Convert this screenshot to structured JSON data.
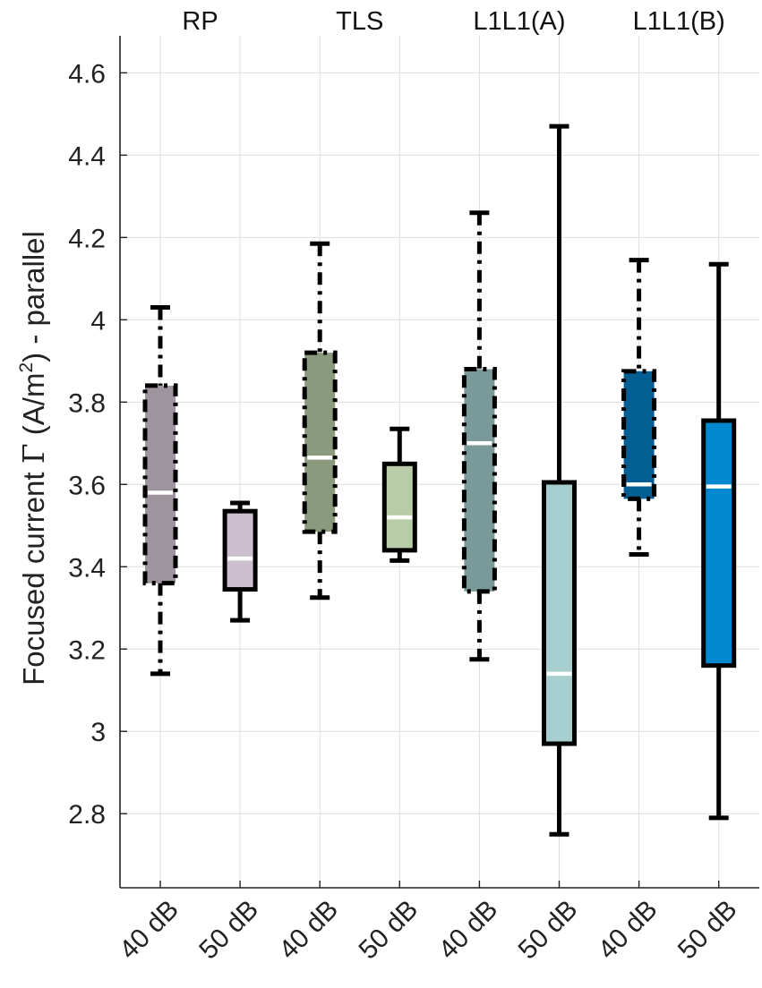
{
  "chart_data": {
    "type": "box",
    "ylabel": {
      "prefix": "Focused current ",
      "symbol": "Γ",
      "unit_open": " (A/m",
      "unit_sup": "2",
      "unit_close": ") - parallel"
    },
    "ylim": [
      2.62,
      4.69
    ],
    "yticks": [
      2.8,
      3.0,
      3.2,
      3.4,
      3.6,
      3.8,
      4.0,
      4.2,
      4.4,
      4.6
    ],
    "ytick_labels": [
      "2.8",
      "3",
      "3.2",
      "3.4",
      "3.6",
      "3.8",
      "4",
      "4.2",
      "4.4",
      "4.6"
    ],
    "groups": [
      {
        "label": "RP",
        "boxes": [
          0,
          1
        ]
      },
      {
        "label": "TLS",
        "boxes": [
          2,
          3
        ]
      },
      {
        "label": "L1L1(A)",
        "boxes": [
          4,
          5
        ]
      },
      {
        "label": "L1L1(B)",
        "boxes": [
          6,
          7
        ]
      }
    ],
    "grid": true,
    "boxes": [
      {
        "label": "40 dB",
        "group": "RP",
        "whisker_low": 3.14,
        "q1": 3.36,
        "median": 3.58,
        "q3": 3.84,
        "whisker_high": 4.03,
        "color": "#9d949d",
        "style": "dashdot"
      },
      {
        "label": "50 dB",
        "group": "RP",
        "whisker_low": 3.27,
        "q1": 3.345,
        "median": 3.42,
        "q3": 3.535,
        "whisker_high": 3.555,
        "color": "#cbbfcf",
        "style": "solid"
      },
      {
        "label": "40 dB",
        "group": "TLS",
        "whisker_low": 3.325,
        "q1": 3.485,
        "median": 3.665,
        "q3": 3.92,
        "whisker_high": 4.185,
        "color": "#8b9a7d",
        "style": "dashdot"
      },
      {
        "label": "50 dB",
        "group": "TLS",
        "whisker_low": 3.415,
        "q1": 3.44,
        "median": 3.52,
        "q3": 3.65,
        "whisker_high": 3.735,
        "color": "#b9cca8",
        "style": "solid"
      },
      {
        "label": "40 dB",
        "group": "L1L1(A)",
        "whisker_low": 3.175,
        "q1": 3.34,
        "median": 3.7,
        "q3": 3.88,
        "whisker_high": 4.26,
        "color": "#7a9a99",
        "style": "dashdot"
      },
      {
        "label": "50 dB",
        "group": "L1L1(A)",
        "whisker_low": 2.75,
        "q1": 2.97,
        "median": 3.14,
        "q3": 3.605,
        "whisker_high": 4.47,
        "color": "#a7cfcf",
        "style": "solid"
      },
      {
        "label": "40 dB",
        "group": "L1L1(B)",
        "whisker_low": 3.43,
        "q1": 3.565,
        "median": 3.6,
        "q3": 3.875,
        "whisker_high": 4.145,
        "color": "#035e93",
        "style": "dashdot"
      },
      {
        "label": "50 dB",
        "group": "L1L1(B)",
        "whisker_low": 2.79,
        "q1": 3.16,
        "median": 3.595,
        "q3": 3.755,
        "whisker_high": 4.135,
        "color": "#0089d0",
        "style": "solid"
      }
    ]
  }
}
